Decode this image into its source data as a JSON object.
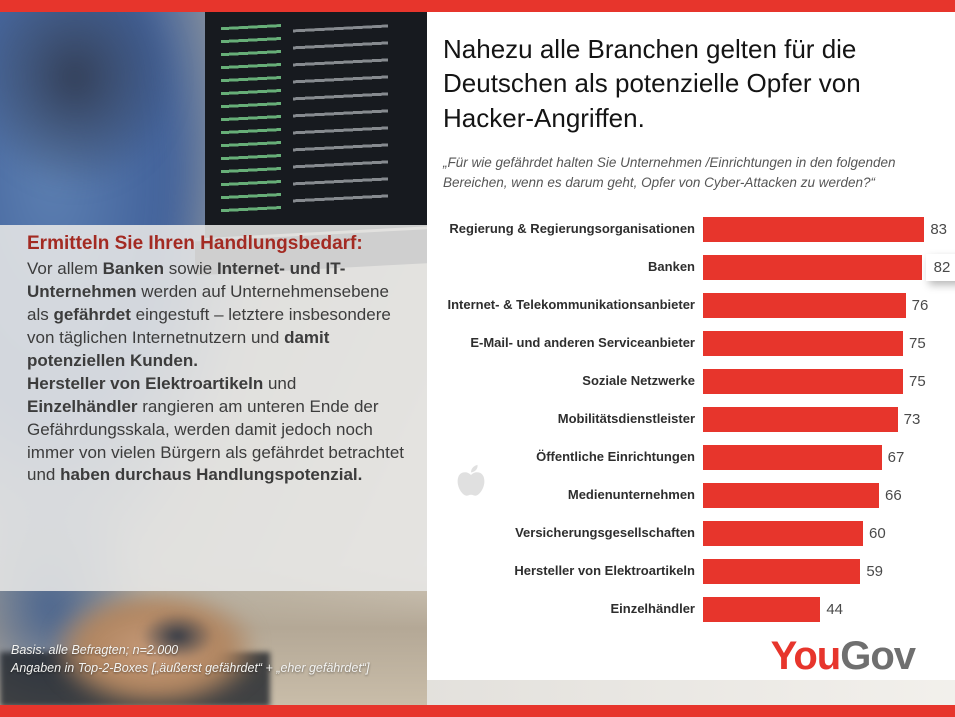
{
  "slide": {
    "title": "Nahezu alle Branchen gelten für die Deutschen als potenzielle Opfer von Hacker-Angriffen.",
    "subtitle": "„Für wie gefährdet halten Sie Unternehmen /Einrichtungen in den folgenden Bereichen, wenn es darum geht, Opfer von Cyber-Attacken zu werden?“"
  },
  "overlay": {
    "heading": "Ermitteln Sie Ihren Handlungsbedarf:",
    "paragraphs": [
      [
        {
          "text": "Vor allem ",
          "bold": false
        },
        {
          "text": "Banken",
          "bold": true
        },
        {
          "text": " sowie ",
          "bold": false
        },
        {
          "text": "Internet- und IT-Unternehmen",
          "bold": true
        },
        {
          "text": " werden auf Unternehmensebene als ",
          "bold": false
        },
        {
          "text": "gefährdet",
          "bold": true
        },
        {
          "text": " eingestuft – letztere insbesondere von täglichen Internetnutzern und ",
          "bold": false
        },
        {
          "text": "damit potenziellen Kunden.",
          "bold": true
        }
      ],
      [
        {
          "text": "Hersteller von Elektroartikeln",
          "bold": true
        },
        {
          "text": " und ",
          "bold": false
        },
        {
          "text": "Einzelhändler",
          "bold": true
        },
        {
          "text": " rangieren am unteren Ende der Gefährdungsskala, werden damit jedoch noch immer von vielen Bürgern als gefährdet betrachtet und ",
          "bold": false
        },
        {
          "text": "haben durchaus Handlungspotenzial.",
          "bold": true
        }
      ]
    ]
  },
  "footnote": {
    "line1": "Basis: alle Befragten; n=2.000",
    "line2": "Angaben in Top-2-Boxes [„äußerst gefährdet“ + „eher gefährdet“]"
  },
  "logo": {
    "part1": "You",
    "part2": "Gov"
  },
  "colors": {
    "red": "#e7352c",
    "dark_red": "#a32a22",
    "logo_gray": "#6f6f6f",
    "text_dark": "#3c3c3c"
  },
  "chart_data": {
    "type": "bar",
    "orientation": "horizontal",
    "title": "",
    "xlabel": "",
    "ylabel": "",
    "xlim": [
      0,
      90
    ],
    "grid": false,
    "legend": "none",
    "bar_color": "#e7352c",
    "highlight_index": 1,
    "categories": [
      "Regierung & Regierungsorganisationen",
      "Banken",
      "Internet- & Telekommunikationsanbieter",
      "E-Mail- und anderen Serviceanbieter",
      "Soziale Netzwerke",
      "Mobilitätsdienstleister",
      "Öffentliche Einrichtungen",
      "Medienunternehmen",
      "Versicherungsgesellschaften",
      "Hersteller von Elektroartikeln",
      "Einzelhändler"
    ],
    "values": [
      83,
      82,
      76,
      75,
      75,
      73,
      67,
      66,
      60,
      59,
      44
    ]
  }
}
